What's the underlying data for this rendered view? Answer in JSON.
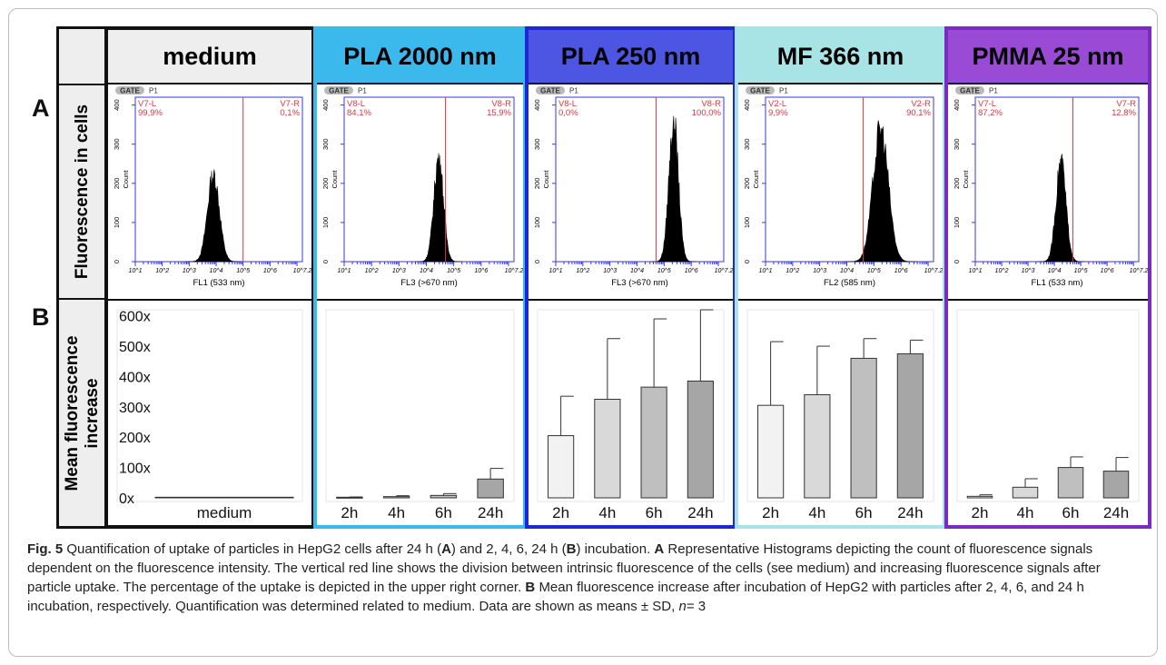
{
  "panel_labels": {
    "a": "A",
    "b": "B"
  },
  "row_labels": {
    "hist": "Fluorescence in cells",
    "bars_line1": "Mean fluorescence",
    "bars_line2": "increase"
  },
  "colors": {
    "red_line": "#e0343f",
    "axis_blue": "#3a3adf",
    "hist_fill": "#000000"
  },
  "hist_common": {
    "gate_label": "GATE",
    "gate_value": "P1",
    "y_axis_label": "Count",
    "y_ticks": [
      "0",
      "100",
      "200",
      "300",
      "400"
    ],
    "x_ticks": [
      "10^1",
      "10^2",
      "10^3",
      "10^4",
      "10^5",
      "10^6",
      "10^7.2"
    ]
  },
  "columns": [
    {
      "id": "medium",
      "title": "medium",
      "header_bg": "#eeeeee",
      "border_color": "#111111",
      "hist": {
        "left_label": "V7-L",
        "left_pct": "99,9%",
        "right_label": "V7-R",
        "right_pct": "0,1%",
        "x_label": "FL1 (533 nm)",
        "peak_log": 3.9,
        "peak_count": 240,
        "width_log": 0.35,
        "gate_log": 5.0
      }
    },
    {
      "id": "pla2000",
      "title": "PLA 2000 nm",
      "header_bg": "#3cb9ec",
      "border_color": "#3cb9ec",
      "hist": {
        "left_label": "V8-L",
        "left_pct": "84,1%",
        "right_label": "V8-R",
        "right_pct": "15,9%",
        "x_label": "FL3 (>670 nm)",
        "peak_log": 4.45,
        "peak_count": 285,
        "width_log": 0.28,
        "gate_log": 4.7
      }
    },
    {
      "id": "pla250",
      "title": "PLA 250 nm",
      "header_bg": "#4d55e3",
      "border_color": "#1e26d6",
      "hist": {
        "left_label": "V8-L",
        "left_pct": "0,0%",
        "right_label": "V8-R",
        "right_pct": "100,0%",
        "x_label": "FL3 (>670 nm)",
        "peak_log": 5.35,
        "peak_count": 385,
        "width_log": 0.28,
        "gate_log": 4.7
      }
    },
    {
      "id": "mf366",
      "title": "MF 366 nm",
      "header_bg": "#a8e3e6",
      "border_color": "#a8e3e6",
      "hist": {
        "left_label": "V2-L",
        "left_pct": "9,9%",
        "right_label": "V2-R",
        "right_pct": "90,1%",
        "x_label": "FL2 (585 nm)",
        "peak_log": 5.25,
        "peak_count": 365,
        "width_log": 0.45,
        "gate_log": 4.6
      }
    },
    {
      "id": "pmma25",
      "title": "PMMA 25 nm",
      "header_bg": "#9a4bd6",
      "border_color": "#7a2cc2",
      "hist": {
        "left_label": "V7-L",
        "left_pct": "87,2%",
        "right_label": "V7-R",
        "right_pct": "12,8%",
        "x_label": "FL1 (533 nm)",
        "peak_log": 4.25,
        "peak_count": 275,
        "width_log": 0.3,
        "gate_log": 4.7
      }
    }
  ],
  "chart_data": {
    "type": "bar",
    "ylabel": "Mean fluorescence increase",
    "y_ticks": [
      "0x",
      "100x",
      "200x",
      "300x",
      "400x",
      "500x",
      "600x"
    ],
    "ylim": [
      0,
      620
    ],
    "groups": [
      {
        "name": "medium",
        "categories": [
          "medium"
        ],
        "values": [
          2
        ],
        "errors": [
          1
        ]
      },
      {
        "name": "PLA 2000 nm",
        "categories": [
          "2h",
          "4h",
          "6h",
          "24h"
        ],
        "values": [
          2,
          4,
          8,
          62
        ],
        "errors": [
          1,
          3,
          6,
          35
        ]
      },
      {
        "name": "PLA 250 nm",
        "categories": [
          "2h",
          "4h",
          "6h",
          "24h"
        ],
        "values": [
          205,
          325,
          365,
          385
        ],
        "errors": [
          130,
          200,
          225,
          235
        ]
      },
      {
        "name": "MF 366 nm",
        "categories": [
          "2h",
          "4h",
          "6h",
          "24h"
        ],
        "values": [
          305,
          340,
          460,
          475
        ],
        "errors": [
          210,
          160,
          65,
          45
        ]
      },
      {
        "name": "PMMA 25 nm",
        "categories": [
          "2h",
          "4h",
          "6h",
          "24h"
        ],
        "values": [
          5,
          35,
          100,
          88
        ],
        "errors": [
          5,
          28,
          35,
          45
        ]
      }
    ],
    "bar_shades": [
      "#f2f2f2",
      "#d9d9d9",
      "#bfbfbf",
      "#a6a6a6"
    ]
  },
  "caption": {
    "fig": "Fig. 5",
    "text1": "Quantification of uptake of particles in HepG2 cells after 24 h (",
    "a1": "A",
    "text2": ") and 2, 4, 6, 24 h (",
    "b1": "B",
    "text3": ") incubation.",
    "a2": "A",
    "text4": "Representative Histograms depicting the count of fluorescence signals dependent on the fluorescence intensity. The vertical red line shows the division between intrinsic fluorescence of the cells (see medium) and increasing fluorescence signals after particle uptake. The percentage of the uptake is depicted in the upper right corner.",
    "b2": "B",
    "text5": "Mean fluorescence increase after incubation of HepG2 with particles after 2, 4, 6, and 24 h incubation, respectively. Quantification was determined related to medium. Data are shown as means ± SD,",
    "n_italic": "n",
    "text6": "= 3"
  }
}
